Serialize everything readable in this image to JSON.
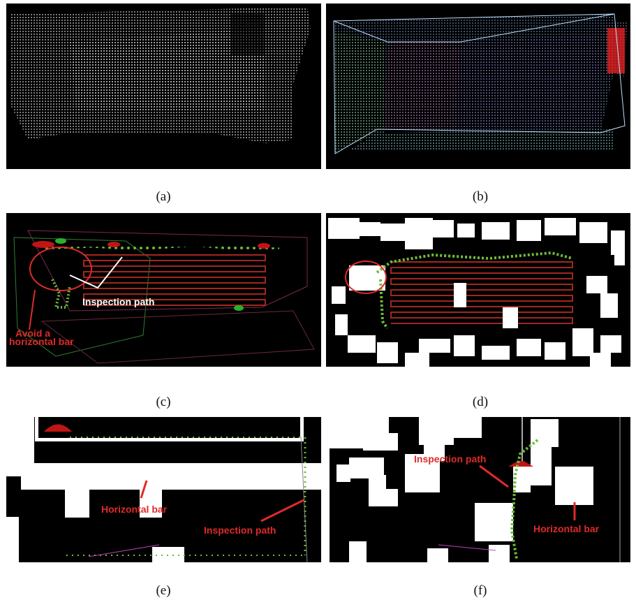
{
  "panels": [
    {
      "caption": "(a)"
    },
    {
      "caption": "(b)"
    },
    {
      "caption": "(c)",
      "annotations": [
        {
          "lines": [
            "Inspection path"
          ]
        },
        {
          "lines": [
            "Avoid a",
            "horizontal bar"
          ]
        }
      ]
    },
    {
      "caption": "(d)"
    },
    {
      "caption": "(e)",
      "annotations": [
        {
          "lines": [
            "Horizontal bar"
          ]
        },
        {
          "lines": [
            "Inspection path"
          ]
        }
      ]
    },
    {
      "caption": "(f)",
      "annotations": [
        {
          "lines": [
            "Inspection path"
          ]
        },
        {
          "lines": [
            "Horizontal bar"
          ]
        }
      ]
    }
  ]
}
